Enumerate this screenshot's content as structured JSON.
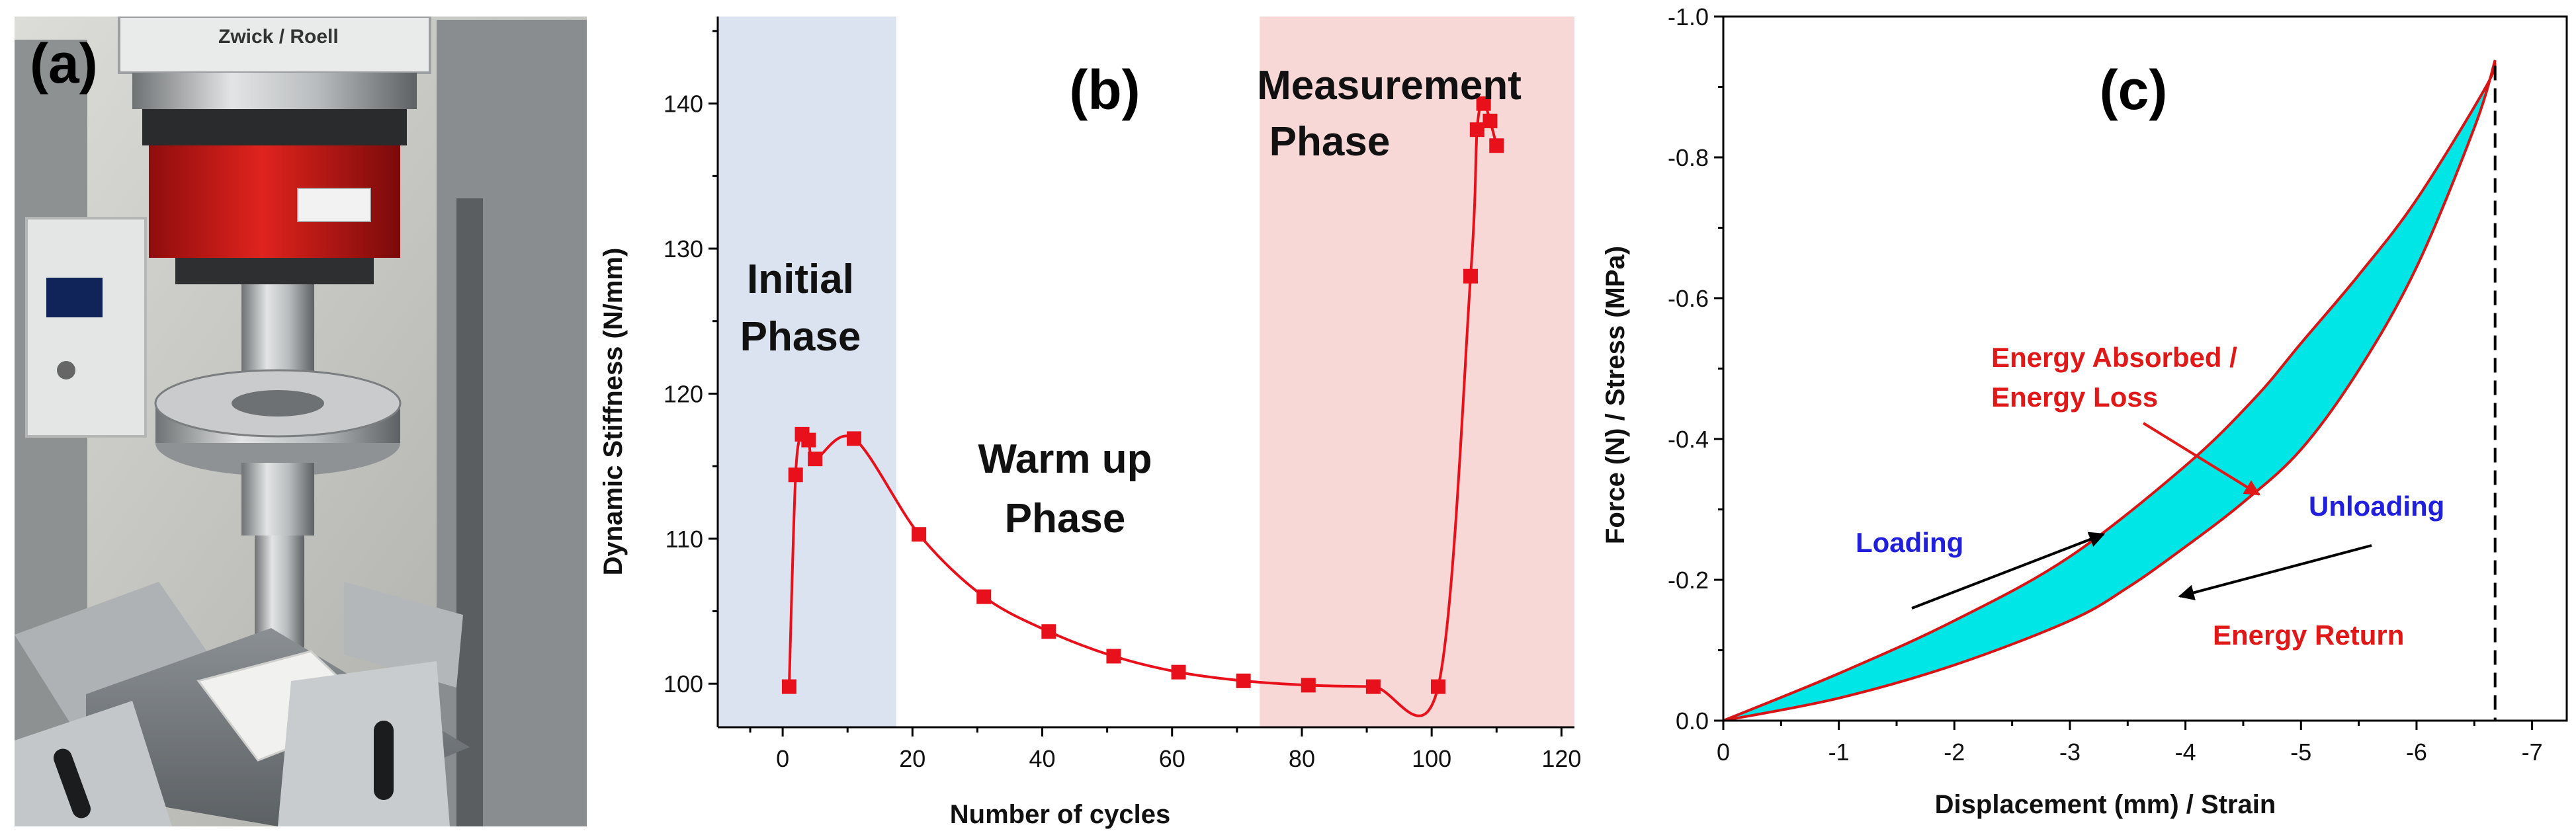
{
  "panels": {
    "a": {
      "label": "(a)",
      "photo_brand": "Zwick / Roell"
    },
    "b": {
      "label": "(b)"
    },
    "c": {
      "label": "(c)"
    }
  },
  "chart_data": [
    {
      "type": "line",
      "title": "",
      "panel": "(b)",
      "xlabel": "Number of cycles",
      "ylabel": "Dynamic Stiffness (N/mm)",
      "xlim": [
        -10,
        122
      ],
      "ylim": [
        97,
        146
      ],
      "xticks": [
        0,
        20,
        40,
        60,
        80,
        100,
        120
      ],
      "yticks": [
        100,
        110,
        120,
        130,
        140
      ],
      "xtick_labels": [
        "0",
        "20",
        "40",
        "60",
        "80",
        "100",
        "120"
      ],
      "ytick_labels": [
        "100",
        "110",
        "120",
        "130",
        "140"
      ],
      "series": [
        {
          "name": "Dynamic Stiffness",
          "color": "#e8101a",
          "x": [
            1,
            2,
            3,
            4,
            5,
            11,
            21,
            31,
            41,
            51,
            61,
            71,
            81,
            91,
            101,
            106,
            107,
            108,
            109,
            110
          ],
          "y": [
            99.8,
            114.4,
            117.2,
            116.8,
            115.5,
            116.9,
            110.3,
            106.0,
            103.6,
            101.9,
            100.8,
            100.2,
            99.9,
            99.8,
            99.8,
            128.1,
            138.2,
            140.0,
            138.8,
            137.1
          ]
        }
      ],
      "regions": [
        {
          "x0": -10,
          "x1": 17.5,
          "color": "#dbe3f1",
          "label_lines": [
            "Initial",
            "Phase"
          ]
        },
        {
          "x0": 73.5,
          "x1": 122,
          "color": "#f8d7d7",
          "label_lines": [
            "Measurement",
            "Phase"
          ]
        }
      ],
      "annotations": [
        {
          "text_lines": [
            "Warm up",
            "Phase"
          ]
        }
      ]
    },
    {
      "type": "area",
      "title": "",
      "panel": "(c)",
      "xlabel": "Displacement (mm) / Strain",
      "ylabel": "Force (N) / Stress (MPa)",
      "xlim": [
        0,
        -7.3
      ],
      "ylim": [
        0,
        -1.0
      ],
      "xticks": [
        0,
        -1,
        -2,
        -3,
        -4,
        -5,
        -6,
        -7
      ],
      "yticks": [
        0,
        -0.2,
        -0.4,
        -0.6,
        -0.8,
        -1.0
      ],
      "xtick_labels": [
        "0",
        "-1",
        "-2",
        "-3",
        "-4",
        "-5",
        "-6",
        "-7"
      ],
      "ytick_labels": [
        "0.0",
        "-0.2",
        "-0.4",
        "-0.6",
        "-0.8",
        "-1.0"
      ],
      "loading_curve": {
        "x": [
          0,
          -1,
          -2,
          -3,
          -4,
          -4.6,
          -5,
          -5.5,
          -6,
          -6.6,
          -6.68
        ],
        "y": [
          0,
          -0.067,
          -0.142,
          -0.233,
          -0.362,
          -0.458,
          -0.536,
          -0.633,
          -0.74,
          -0.9,
          -0.938
        ]
      },
      "unloading_curve": {
        "x": [
          -6.68,
          -6.5,
          -6,
          -5.5,
          -5,
          -4.5,
          -4,
          -3.5,
          -3,
          -2,
          -1,
          0
        ],
        "y": [
          -0.938,
          -0.842,
          -0.644,
          -0.498,
          -0.385,
          -0.31,
          -0.247,
          -0.189,
          -0.142,
          -0.079,
          -0.032,
          0
        ]
      },
      "fill_color": "#00e5e5",
      "curve_color": "#d81414",
      "max_displacement_marker": -6.68,
      "annotations": [
        {
          "id": "energy-absorbed",
          "text_lines": [
            "Energy Absorbed /",
            "Energy Loss"
          ],
          "color": "#e01818"
        },
        {
          "id": "loading",
          "text_lines": [
            "Loading"
          ],
          "color": "#1f1fdc"
        },
        {
          "id": "unloading",
          "text_lines": [
            "Unloading"
          ],
          "color": "#1f1fdc"
        },
        {
          "id": "energy-return",
          "text_lines": [
            "Energy Return"
          ],
          "color": "#e01818"
        }
      ]
    }
  ]
}
